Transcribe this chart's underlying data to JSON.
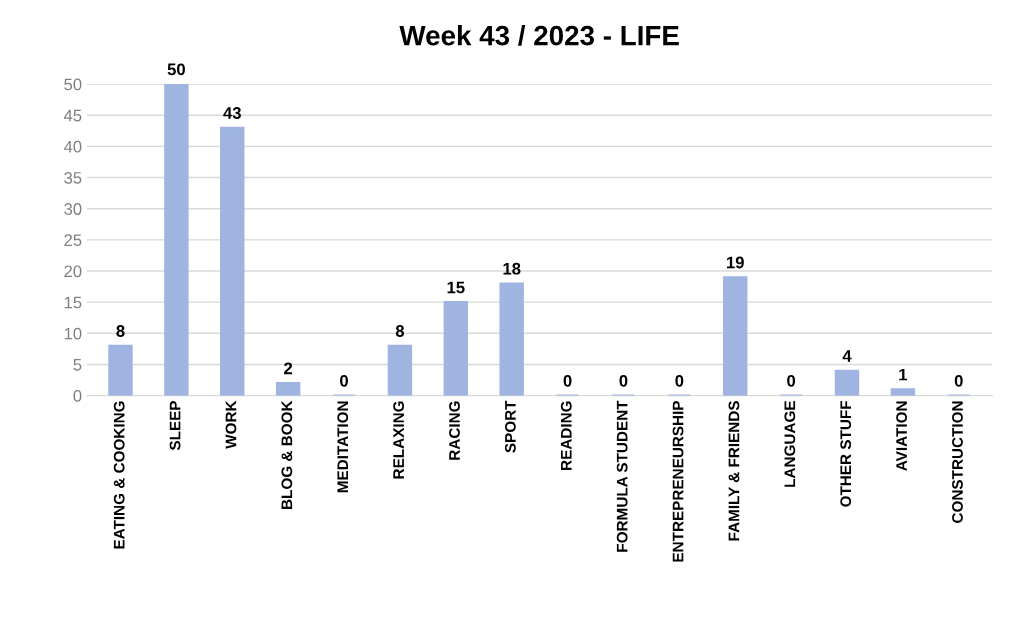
{
  "chart_data": {
    "type": "bar",
    "title": "Week 43 / 2023 - LIFE",
    "categories": [
      "EATING & COOKING",
      "SLEEP",
      "WORK",
      "BLOG & BOOK",
      "MEDITATION",
      "RELAXING",
      "RACING",
      "SPORT",
      "READING",
      "FORMULA STUDENT",
      "ENTREPRENEURSHIP",
      "FAMILY & FRIENDS",
      "LANGUAGE",
      "OTHER STUFF",
      "AVIATION",
      "CONSTRUCTION"
    ],
    "values": [
      8,
      50,
      43,
      2,
      0,
      8,
      15,
      18,
      0,
      0,
      0,
      19,
      0,
      4,
      1,
      0
    ],
    "color": "#9fb4e0",
    "ylim": [
      0,
      50
    ],
    "yticks": [
      0,
      5,
      10,
      15,
      20,
      25,
      30,
      35,
      40,
      45,
      50
    ],
    "grid": "y",
    "data_labels": true
  }
}
